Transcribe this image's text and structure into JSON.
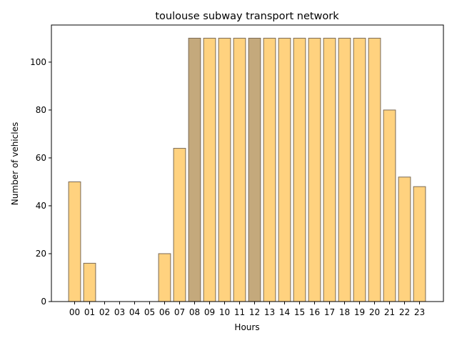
{
  "chart_data": {
    "type": "bar",
    "title": "toulouse subway transport network",
    "xlabel": "Hours",
    "ylabel": "Number of vehicles",
    "categories": [
      "00",
      "01",
      "02",
      "03",
      "04",
      "05",
      "06",
      "07",
      "08",
      "09",
      "10",
      "11",
      "12",
      "13",
      "14",
      "15",
      "16",
      "17",
      "18",
      "19",
      "20",
      "21",
      "22",
      "23"
    ],
    "values": [
      50,
      16,
      0,
      0,
      0,
      0,
      20,
      64,
      110,
      110,
      110,
      110,
      110,
      110,
      110,
      110,
      110,
      110,
      110,
      110,
      110,
      80,
      52,
      48
    ],
    "highlighted_categories": [
      "08",
      "12"
    ],
    "ylim": [
      0,
      115.5
    ],
    "yticks": [
      0,
      20,
      40,
      60,
      80,
      100
    ],
    "grid": false,
    "colors": {
      "bar_fill": "#FFD27F",
      "bar_highlight_fill": "#C4A97C",
      "bar_edge": "#7A6A55",
      "axis": "#000000"
    }
  }
}
